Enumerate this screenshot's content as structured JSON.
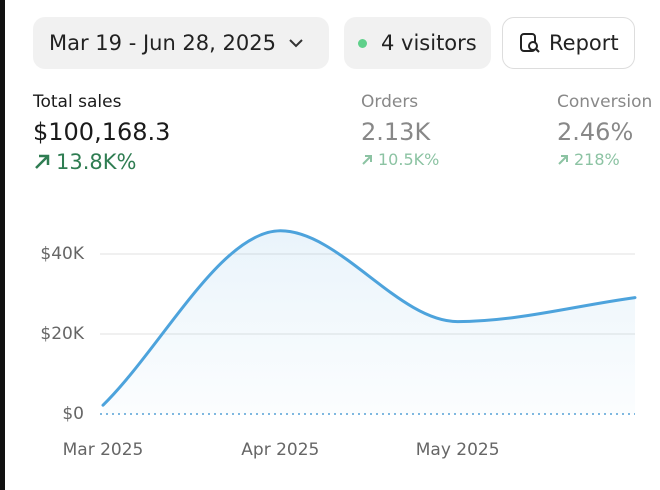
{
  "toolbar": {
    "date_range": "Mar 19 - Jun 28, 2025",
    "visitors": "4 visitors",
    "report": "Report"
  },
  "metrics": [
    {
      "label": "Total sales",
      "value": "$100,168.3",
      "change": "13.8K%"
    },
    {
      "label": "Orders",
      "value": "2.13K",
      "change": "10.5K%"
    },
    {
      "label": "Conversion",
      "value": "2.46%",
      "change": "218%"
    }
  ],
  "chart_data": {
    "type": "line",
    "categories": [
      "Mar 2025",
      "Apr 2025",
      "May 2025",
      null
    ],
    "series": [
      {
        "name": "Total sales",
        "color": "#4da3dc",
        "values": [
          2200,
          45800,
          23100,
          29100
        ]
      }
    ],
    "ylim": [
      0,
      50000
    ],
    "yticks": [
      {
        "value": 0,
        "label": "$0"
      },
      {
        "value": 20000,
        "label": "$20K"
      },
      {
        "value": 40000,
        "label": "$40K"
      }
    ],
    "grid": true
  }
}
